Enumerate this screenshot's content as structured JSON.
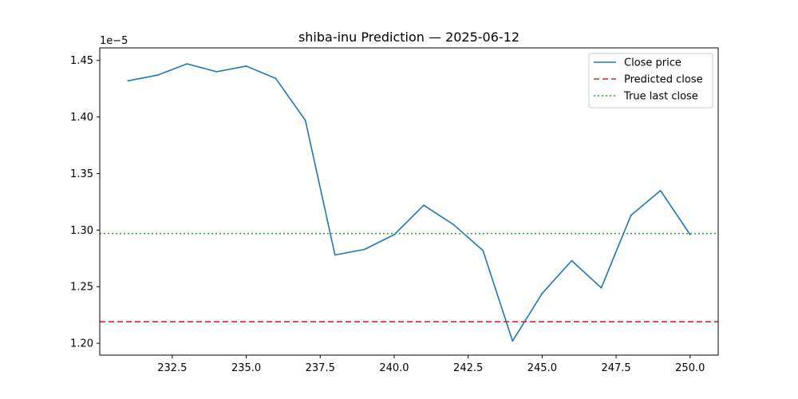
{
  "chart_data": {
    "type": "line",
    "title": "shiba-inu Prediction — 2025-06-12",
    "xlabel": "",
    "ylabel": "",
    "y_offset_label": "1e−5",
    "y_scale": 1e-05,
    "xlim": [
      230.05,
      250.95
    ],
    "ylim": [
      1.1895,
      1.4611
    ],
    "x_ticks": [
      232.5,
      235.0,
      237.5,
      240.0,
      242.5,
      245.0,
      247.5,
      250.0
    ],
    "x_tick_labels": [
      "232.5",
      "235.0",
      "237.5",
      "240.0",
      "242.5",
      "245.0",
      "247.5",
      "250.0"
    ],
    "y_ticks": [
      1.2,
      1.25,
      1.3,
      1.35,
      1.4,
      1.45
    ],
    "y_tick_labels": [
      "1.20",
      "1.25",
      "1.30",
      "1.35",
      "1.40",
      "1.45"
    ],
    "grid": false,
    "legend_position": "top-right",
    "series": [
      {
        "name": "Close price",
        "style": "solid",
        "color": "#1f77b4",
        "x": [
          231,
          232,
          233,
          234,
          235,
          236,
          237,
          238,
          239,
          240,
          241,
          242,
          243,
          244,
          245,
          246,
          247,
          248,
          249,
          250
        ],
        "y": [
          1.432,
          1.437,
          1.447,
          1.44,
          1.445,
          1.434,
          1.397,
          1.278,
          1.283,
          1.296,
          1.322,
          1.305,
          1.282,
          1.202,
          1.244,
          1.273,
          1.249,
          1.313,
          1.335,
          1.296
        ]
      },
      {
        "name": "Predicted close",
        "style": "dashed",
        "color": "#d62728",
        "hline": 1.219
      },
      {
        "name": "True last close",
        "style": "dotted",
        "color": "#2ca02c",
        "hline": 1.297
      }
    ]
  }
}
